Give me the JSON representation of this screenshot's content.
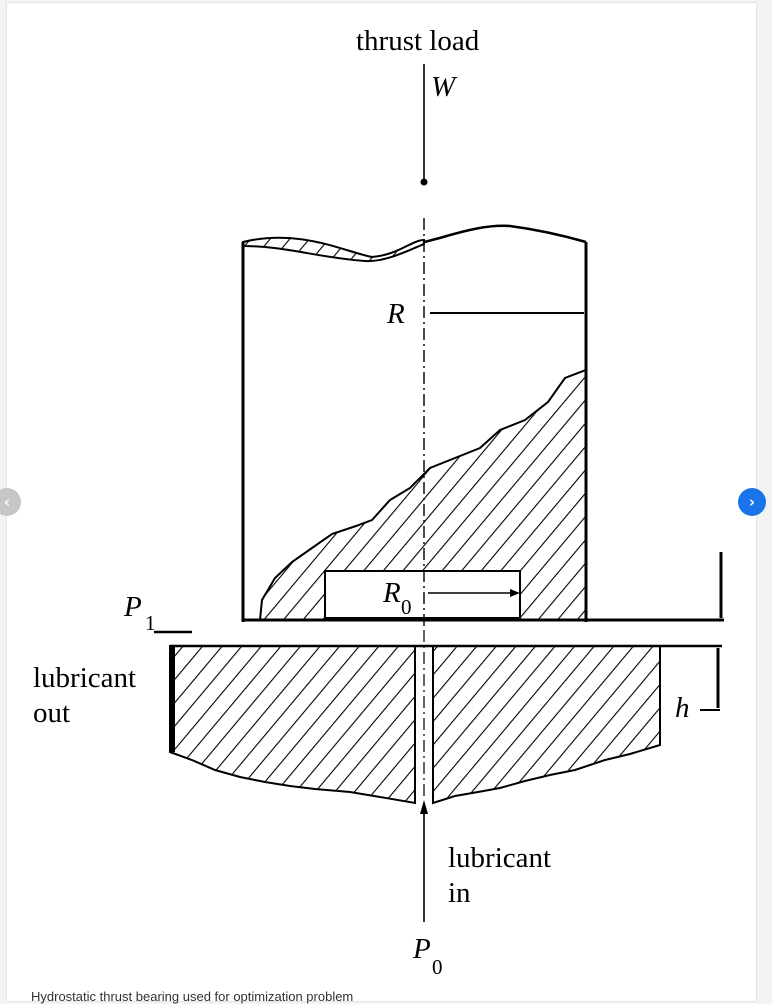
{
  "figure": {
    "label_thrust_load": "thrust load",
    "label_W": "W",
    "label_R": "R",
    "label_R0_base": "R",
    "label_R0_sub": "0",
    "label_P1_base": "P",
    "label_P1_sub": "1",
    "label_lubricant_out_1": "lubricant",
    "label_lubricant_out_2": "out",
    "label_h": "h",
    "label_lubricant_in_1": "lubricant",
    "label_lubricant_in_2": "in",
    "label_P0_base": "P",
    "label_P0_sub": "0"
  },
  "caption": "Hydrostatic thrust bearing used for optimization problem",
  "nav": {
    "prev_icon": "chevron-left-icon",
    "next_icon": "chevron-right-icon",
    "prev_glyph": "‹",
    "next_glyph": "›",
    "prev_color": "#c6c6c6",
    "next_color": "#1a73e8"
  }
}
